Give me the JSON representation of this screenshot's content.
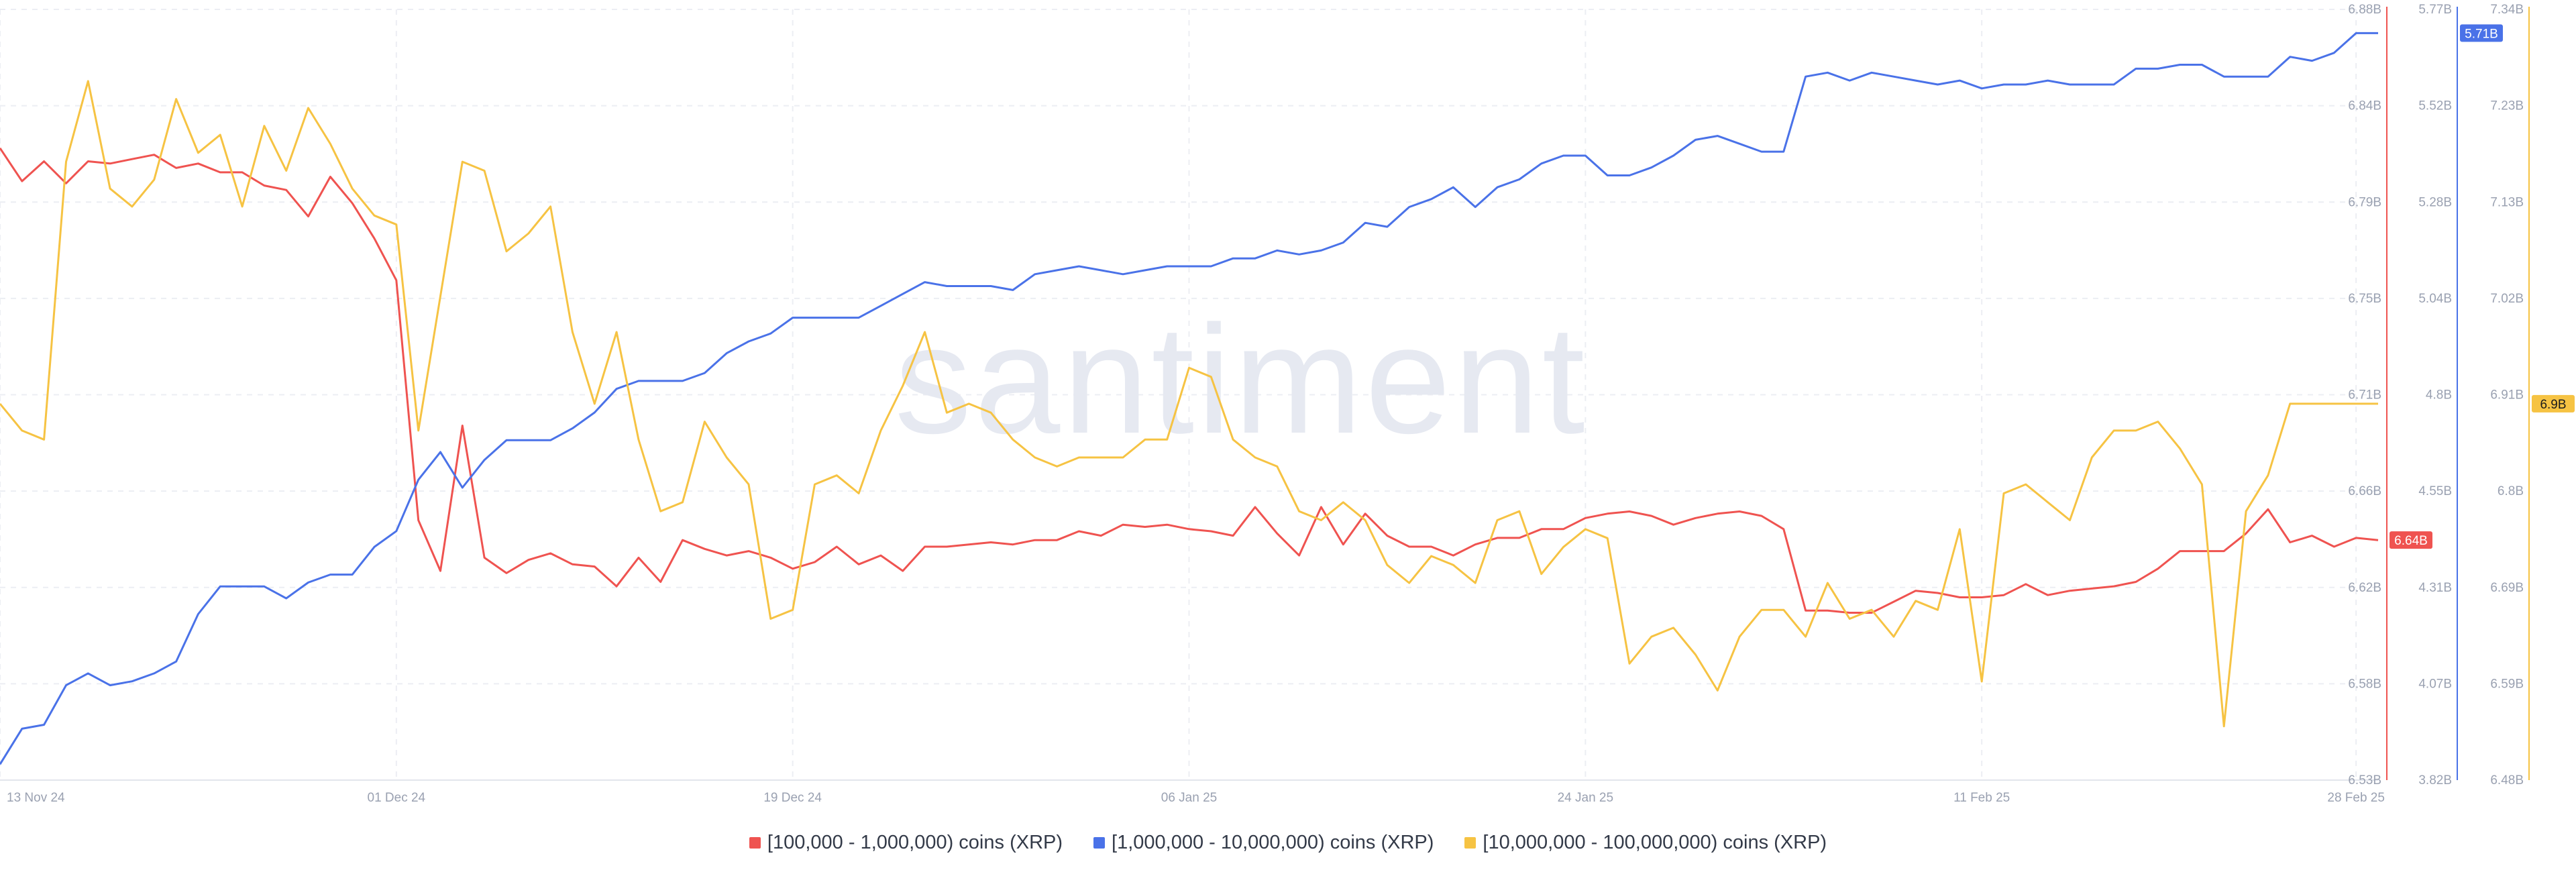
{
  "watermark": "santiment",
  "colors": {
    "red": "#ef5350",
    "blue": "#4a72e8",
    "yellow": "#f6c343",
    "grid": "#eceef3",
    "tick": "#9aa1b1"
  },
  "legend": [
    {
      "label": "[100,000  - 1,000,000) coins (XRP)",
      "color": "#ef5350"
    },
    {
      "label": "[1,000,000 - 10,000,000) coins (XRP)",
      "color": "#4a72e8"
    },
    {
      "label": "[10,000,000 - 100,000,000) coins (XRP)",
      "color": "#f6c343"
    }
  ],
  "chart_data": {
    "type": "line",
    "title": "",
    "xlabel": "",
    "x_ticks": [
      {
        "label": "13 Nov 24",
        "index": 0
      },
      {
        "label": "01 Dec 24",
        "index": 18
      },
      {
        "label": "19 Dec 24",
        "index": 36
      },
      {
        "label": "06 Jan 25",
        "index": 54
      },
      {
        "label": "24 Jan 25",
        "index": 72
      },
      {
        "label": "11 Feb 25",
        "index": 90
      },
      {
        "label": "28 Feb 25",
        "index": 107
      }
    ],
    "grid": true,
    "axes": [
      {
        "id": "red",
        "color": "#ef5350",
        "ylim": [
          6.53,
          6.88
        ],
        "ticks": [
          "6.88B",
          "6.84B",
          "6.79B",
          "6.75B",
          "6.71B",
          "6.66B",
          "6.62B",
          "6.58B",
          "6.53B"
        ],
        "last_value_label": "6.64B"
      },
      {
        "id": "blue",
        "color": "#4a72e8",
        "ylim": [
          3.82,
          5.77
        ],
        "ticks": [
          "5.77B",
          "5.52B",
          "5.28B",
          "5.04B",
          "4.8B",
          "4.55B",
          "4.31B",
          "4.07B",
          "3.82B"
        ],
        "last_value_label": "5.71B"
      },
      {
        "id": "yellow",
        "color": "#f6c343",
        "ylim": [
          6.48,
          7.34
        ],
        "ticks": [
          "7.34B",
          "7.23B",
          "7.13B",
          "7.02B",
          "6.91B",
          "6.8B",
          "6.69B",
          "6.59B",
          "6.48B"
        ],
        "last_value_label": "6.9B"
      }
    ],
    "series": [
      {
        "name": "[100,000  - 1,000,000) coins (XRP)",
        "axis": "red",
        "color": "#ef5350",
        "values": [
          6.817,
          6.802,
          6.811,
          6.801,
          6.811,
          6.81,
          6.812,
          6.814,
          6.808,
          6.81,
          6.806,
          6.806,
          6.8,
          6.798,
          6.786,
          6.804,
          6.792,
          6.776,
          6.757,
          6.648,
          6.625,
          6.691,
          6.631,
          6.624,
          6.63,
          6.633,
          6.628,
          6.627,
          6.618,
          6.631,
          6.62,
          6.639,
          6.635,
          6.632,
          6.634,
          6.631,
          6.626,
          6.629,
          6.636,
          6.628,
          6.632,
          6.625,
          6.636,
          6.636,
          6.637,
          6.638,
          6.637,
          6.639,
          6.639,
          6.643,
          6.641,
          6.646,
          6.645,
          6.646,
          6.644,
          6.643,
          6.641,
          6.654,
          6.642,
          6.632,
          6.654,
          6.637,
          6.651,
          6.641,
          6.636,
          6.636,
          6.632,
          6.637,
          6.64,
          6.64,
          6.644,
          6.644,
          6.649,
          6.651,
          6.652,
          6.65,
          6.646,
          6.649,
          6.651,
          6.652,
          6.65,
          6.644,
          6.607,
          6.607,
          6.606,
          6.606,
          6.611,
          6.616,
          6.615,
          6.613,
          6.613,
          6.614,
          6.619,
          6.614,
          6.616,
          6.617,
          6.618,
          6.62,
          6.626,
          6.634,
          6.634,
          6.634,
          6.642,
          6.653,
          6.638,
          6.641,
          6.636,
          6.64,
          6.639
        ]
      },
      {
        "name": "[1,000,000 - 10,000,000) coins (XRP)",
        "axis": "blue",
        "color": "#4a72e8",
        "values": [
          3.86,
          3.95,
          3.96,
          4.06,
          4.09,
          4.06,
          4.07,
          4.09,
          4.12,
          4.24,
          4.31,
          4.31,
          4.31,
          4.28,
          4.32,
          4.34,
          4.34,
          4.41,
          4.45,
          4.58,
          4.65,
          4.56,
          4.63,
          4.68,
          4.68,
          4.68,
          4.71,
          4.75,
          4.81,
          4.83,
          4.83,
          4.83,
          4.85,
          4.9,
          4.93,
          4.95,
          4.99,
          4.99,
          4.99,
          4.99,
          5.02,
          5.05,
          5.08,
          5.07,
          5.07,
          5.07,
          5.06,
          5.1,
          5.11,
          5.12,
          5.11,
          5.1,
          5.11,
          5.12,
          5.12,
          5.12,
          5.14,
          5.14,
          5.16,
          5.15,
          5.16,
          5.18,
          5.23,
          5.22,
          5.27,
          5.29,
          5.32,
          5.27,
          5.32,
          5.34,
          5.38,
          5.4,
          5.4,
          5.35,
          5.35,
          5.37,
          5.4,
          5.44,
          5.45,
          5.43,
          5.41,
          5.41,
          5.6,
          5.61,
          5.59,
          5.61,
          5.6,
          5.59,
          5.58,
          5.59,
          5.57,
          5.58,
          5.58,
          5.59,
          5.58,
          5.58,
          5.58,
          5.62,
          5.62,
          5.63,
          5.63,
          5.6,
          5.6,
          5.6,
          5.65,
          5.64,
          5.66,
          5.71,
          5.71
        ]
      },
      {
        "name": "[10,000,000 - 100,000,000) coins (XRP)",
        "axis": "yellow",
        "color": "#f6c343",
        "values": [
          6.9,
          6.87,
          6.86,
          7.17,
          7.26,
          7.14,
          7.12,
          7.15,
          7.24,
          7.18,
          7.2,
          7.12,
          7.21,
          7.16,
          7.23,
          7.19,
          7.14,
          7.11,
          7.1,
          6.87,
          7.02,
          7.17,
          7.16,
          7.07,
          7.09,
          7.12,
          6.98,
          6.9,
          6.98,
          6.86,
          6.78,
          6.79,
          6.88,
          6.84,
          6.81,
          6.66,
          6.67,
          6.81,
          6.82,
          6.8,
          6.87,
          6.92,
          6.98,
          6.89,
          6.9,
          6.89,
          6.86,
          6.84,
          6.83,
          6.84,
          6.84,
          6.84,
          6.86,
          6.86,
          6.94,
          6.93,
          6.86,
          6.84,
          6.83,
          6.78,
          6.77,
          6.79,
          6.77,
          6.72,
          6.7,
          6.73,
          6.72,
          6.7,
          6.77,
          6.78,
          6.71,
          6.74,
          6.76,
          6.75,
          6.61,
          6.64,
          6.65,
          6.62,
          6.58,
          6.64,
          6.67,
          6.67,
          6.64,
          6.7,
          6.66,
          6.67,
          6.64,
          6.68,
          6.67,
          6.76,
          6.59,
          6.8,
          6.81,
          6.79,
          6.77,
          6.84,
          6.87,
          6.87,
          6.88,
          6.85,
          6.81,
          6.54,
          6.78,
          6.82,
          6.9,
          6.9,
          6.9,
          6.9,
          6.9
        ]
      }
    ]
  }
}
